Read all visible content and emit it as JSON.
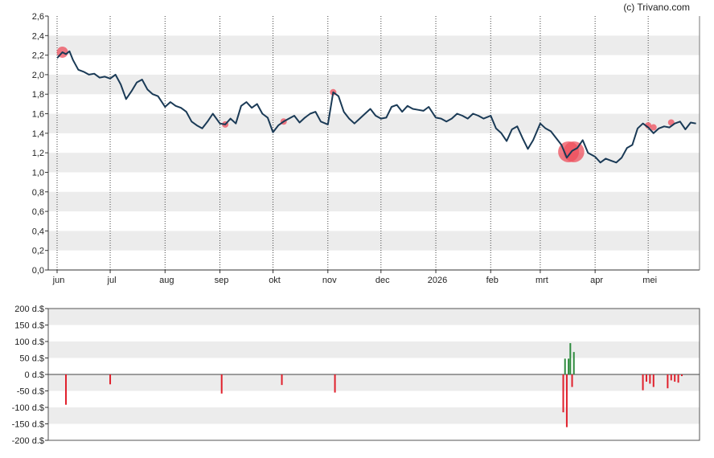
{
  "copyright": "(c) Trivano.com",
  "chart_data": [
    {
      "type": "line",
      "title": "",
      "xlabel": "",
      "ylabel": "",
      "ylim": [
        0,
        2.6
      ],
      "y_ticks": [
        "0,0",
        "0,2",
        "0,4",
        "0,6",
        "0,8",
        "1,0",
        "1,2",
        "1,4",
        "1,6",
        "1,8",
        "2,0",
        "2,2",
        "2,4",
        "2,6"
      ],
      "x_ticks": [
        "jun",
        "jul",
        "aug",
        "sep",
        "okt",
        "nov",
        "dec",
        "2026",
        "feb",
        "mrt",
        "apr",
        "mei"
      ],
      "grid": "alternating horizontal bands, dotted vertical lines at month starts",
      "line_color": "#1a3a56",
      "marker_color": "#ee4f5c",
      "series": [
        {
          "x": [
            "2025-06-01",
            "2025-06-04",
            "2025-06-06",
            "2025-06-08",
            "2025-06-10",
            "2025-06-13",
            "2025-06-16",
            "2025-06-19",
            "2025-06-22",
            "2025-06-25",
            "2025-06-28",
            "2025-07-01",
            "2025-07-04",
            "2025-07-07",
            "2025-07-10",
            "2025-07-13",
            "2025-07-16",
            "2025-07-19",
            "2025-07-22",
            "2025-07-25",
            "2025-07-28",
            "2025-08-01",
            "2025-08-04",
            "2025-08-07",
            "2025-08-10",
            "2025-08-13",
            "2025-08-16",
            "2025-08-19",
            "2025-08-22",
            "2025-08-25",
            "2025-08-28",
            "2025-09-01",
            "2025-09-04",
            "2025-09-07",
            "2025-09-10",
            "2025-09-13",
            "2025-09-16",
            "2025-09-19",
            "2025-09-22",
            "2025-09-25",
            "2025-09-28",
            "2025-10-01",
            "2025-10-04",
            "2025-10-07",
            "2025-10-10",
            "2025-10-13",
            "2025-10-16",
            "2025-10-19",
            "2025-10-22",
            "2025-10-25",
            "2025-10-28",
            "2025-11-01",
            "2025-11-04",
            "2025-11-07",
            "2025-11-10",
            "2025-11-13",
            "2025-11-16",
            "2025-11-19",
            "2025-11-22",
            "2025-11-25",
            "2025-11-28",
            "2025-12-01",
            "2025-12-04",
            "2025-12-07",
            "2025-12-10",
            "2025-12-13",
            "2025-12-16",
            "2025-12-19",
            "2025-12-22",
            "2025-12-25",
            "2025-12-28",
            "2026-01-01",
            "2026-01-04",
            "2026-01-07",
            "2026-01-10",
            "2026-01-13",
            "2026-01-16",
            "2026-01-19",
            "2026-01-22",
            "2026-01-25",
            "2026-01-28",
            "2026-02-01",
            "2026-02-04",
            "2026-02-07",
            "2026-02-10",
            "2026-02-13",
            "2026-02-16",
            "2026-02-19",
            "2026-02-22",
            "2026-02-25",
            "2026-03-01",
            "2026-03-04",
            "2026-03-07",
            "2026-03-10",
            "2026-03-13",
            "2026-03-16",
            "2026-03-19",
            "2026-03-22",
            "2026-03-25",
            "2026-03-28",
            "2026-04-01",
            "2026-04-04",
            "2026-04-07",
            "2026-04-10",
            "2026-04-13",
            "2026-04-16",
            "2026-04-19",
            "2026-04-22",
            "2026-04-25",
            "2026-04-28",
            "2026-05-01",
            "2026-05-04",
            "2026-05-07",
            "2026-05-10",
            "2026-05-13",
            "2026-05-16",
            "2026-05-19",
            "2026-05-22",
            "2026-05-25",
            "2026-05-28"
          ],
          "values": [
            2.17,
            2.23,
            2.21,
            2.24,
            2.15,
            2.05,
            2.03,
            2.0,
            2.01,
            1.97,
            1.98,
            1.96,
            2.0,
            1.9,
            1.75,
            1.83,
            1.92,
            1.95,
            1.85,
            1.8,
            1.78,
            1.67,
            1.72,
            1.68,
            1.66,
            1.62,
            1.52,
            1.48,
            1.45,
            1.52,
            1.6,
            1.5,
            1.49,
            1.55,
            1.5,
            1.68,
            1.72,
            1.66,
            1.7,
            1.6,
            1.56,
            1.41,
            1.48,
            1.52,
            1.55,
            1.58,
            1.51,
            1.56,
            1.6,
            1.62,
            1.52,
            1.49,
            1.82,
            1.78,
            1.62,
            1.55,
            1.5,
            1.55,
            1.6,
            1.65,
            1.58,
            1.55,
            1.56,
            1.67,
            1.69,
            1.62,
            1.68,
            1.65,
            1.64,
            1.63,
            1.67,
            1.56,
            1.55,
            1.52,
            1.55,
            1.6,
            1.58,
            1.55,
            1.6,
            1.58,
            1.55,
            1.58,
            1.45,
            1.4,
            1.32,
            1.44,
            1.47,
            1.35,
            1.24,
            1.33,
            1.5,
            1.45,
            1.42,
            1.35,
            1.28,
            1.15,
            1.22,
            1.25,
            1.33,
            1.2,
            1.16,
            1.1,
            1.14,
            1.12,
            1.1,
            1.15,
            1.25,
            1.28,
            1.45,
            1.5,
            1.46,
            1.4,
            1.45,
            1.47,
            1.46,
            1.5,
            1.52,
            1.44,
            1.51,
            1.5
          ]
        }
      ],
      "markers": [
        {
          "x": "2025-06-04",
          "y": 2.23,
          "size": "medium"
        },
        {
          "x": "2025-09-04",
          "y": 1.49,
          "size": "small"
        },
        {
          "x": "2025-10-07",
          "y": 1.52,
          "size": "small"
        },
        {
          "x": "2025-11-04",
          "y": 1.82,
          "size": "small"
        },
        {
          "x": "2026-03-17",
          "y": 1.21,
          "size": "large"
        },
        {
          "x": "2026-03-20",
          "y": 1.21,
          "size": "large"
        },
        {
          "x": "2026-05-01",
          "y": 1.48,
          "size": "small"
        },
        {
          "x": "2026-05-04",
          "y": 1.46,
          "size": "small"
        },
        {
          "x": "2026-05-14",
          "y": 1.51,
          "size": "small"
        }
      ]
    },
    {
      "type": "bar",
      "title": "",
      "xlabel": "",
      "ylabel": "",
      "ylim": [
        -200,
        200
      ],
      "y_ticks": [
        "200 d.$",
        "150 d.$",
        "100 d.$",
        "50 d.$",
        "0 d.$",
        "-50 d.$",
        "-100 d.$",
        "-150 d.$",
        "-200 d.$"
      ],
      "positive_color": "#2e8b3e",
      "negative_color": "#e0202c",
      "series": [
        {
          "x": [
            "2025-06-06",
            "2025-07-01",
            "2025-09-02",
            "2025-10-06",
            "2025-11-05",
            "2026-03-14",
            "2026-03-15",
            "2026-03-16",
            "2026-03-17",
            "2026-03-18",
            "2026-03-19",
            "2026-03-20",
            "2026-04-28",
            "2026-04-30",
            "2026-05-02",
            "2026-05-04",
            "2026-05-12",
            "2026-05-14",
            "2026-05-16",
            "2026-05-18",
            "2026-05-20"
          ],
          "values": [
            -92,
            -30,
            -58,
            -32,
            -55,
            -115,
            48,
            -160,
            48,
            95,
            -38,
            68,
            -48,
            -22,
            -28,
            -38,
            -42,
            -18,
            -22,
            -25,
            -5
          ]
        }
      ]
    }
  ]
}
